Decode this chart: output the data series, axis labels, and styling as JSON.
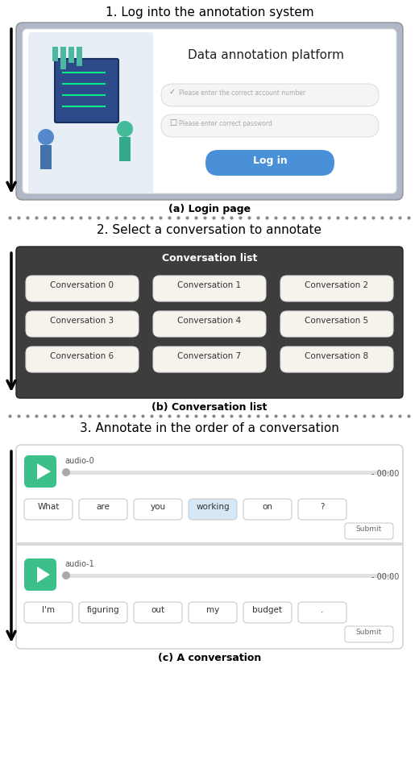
{
  "fig_width": 5.2,
  "fig_height": 9.48,
  "bg_color": "#ffffff",
  "step1_title": "1. Log into the annotation system",
  "step2_title": "2. Select a conversation to annotate",
  "step3_title": "3. Annotate in the order of a conversation",
  "caption_a": "(a) Login page",
  "caption_b": "(b) Conversation list",
  "caption_c": "(c) A conversation",
  "login_title": "Data annotation platform",
  "login_field1": "Please enter the correct account number",
  "login_field2": "Please enter correct password",
  "login_button": "Log in",
  "conv_header": "Conversation list",
  "conversations": [
    "Conversation 0",
    "Conversation 1",
    "Conversation 2",
    "Conversation 3",
    "Conversation 4",
    "Conversation 5",
    "Conversation 6",
    "Conversation 7",
    "Conversation 8"
  ],
  "conv_bg": "#3d3d3d",
  "audio0_label": "audio-0",
  "audio1_label": "audio-1",
  "audio0_time": "- 00:00",
  "audio1_time": "- 00:00",
  "words1": [
    "What",
    "are",
    "you",
    "working",
    "on",
    "?"
  ],
  "words2": [
    "I'm",
    "figuring",
    "out",
    "my",
    "budget",
    "."
  ],
  "highlighted_word": "working",
  "player_color": "#3dbf8a",
  "dot_color": "#888888",
  "section_divider_color": "#cccccc"
}
